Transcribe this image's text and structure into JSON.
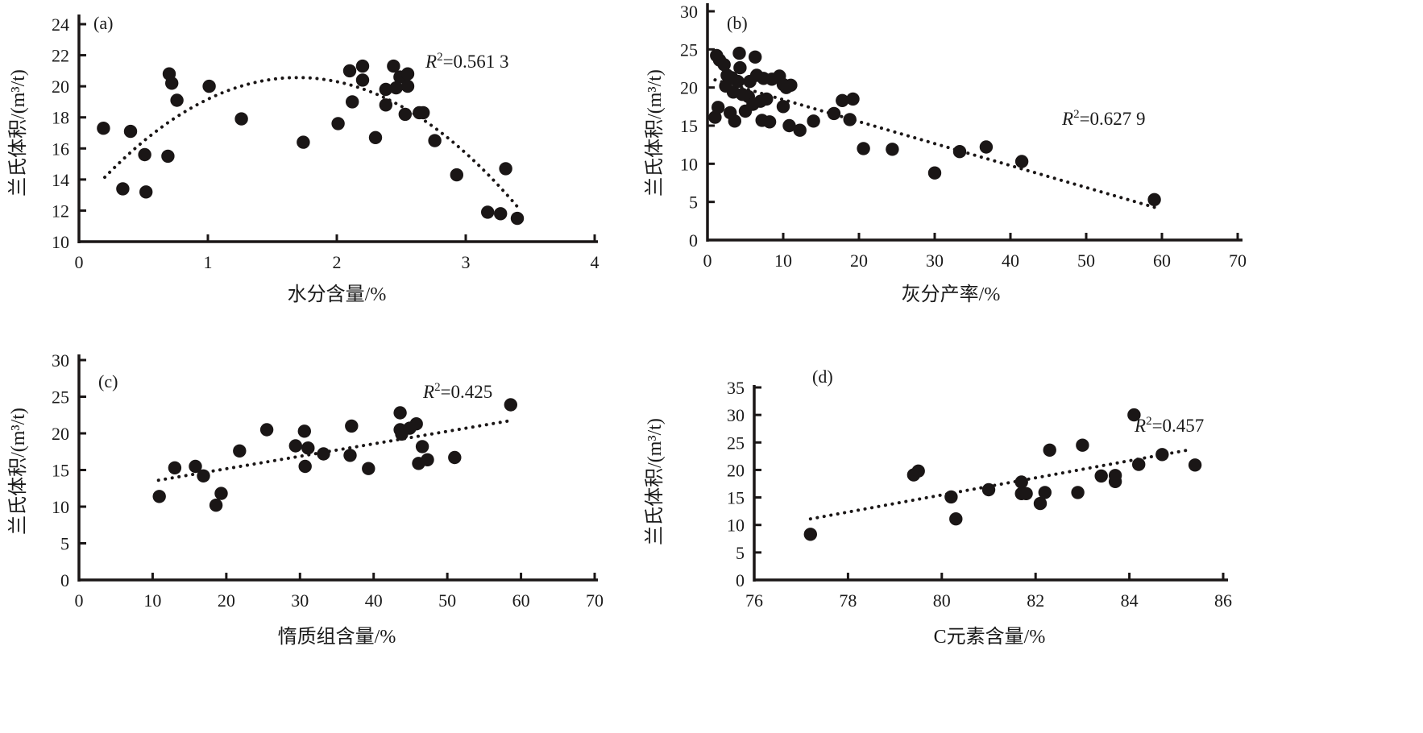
{
  "chart_data": [
    {
      "id": "a",
      "type": "scatter",
      "panel_label": "(a)",
      "title": "",
      "xlabel": "水分含量/%",
      "ylabel": "兰氏体积/(m³/t)",
      "xlim": [
        0,
        4
      ],
      "ylim": [
        10,
        24
      ],
      "xticks": [
        0,
        1,
        2,
        3,
        4
      ],
      "yticks": [
        10,
        12,
        14,
        16,
        18,
        20,
        22,
        24
      ],
      "grid": false,
      "trendline": {
        "type": "polynomial",
        "order": 2,
        "style": "dotted",
        "x_range": [
          0.2,
          3.4
        ],
        "points": [
          [
            0.2,
            14.2
          ],
          [
            0.5,
            16.4
          ],
          [
            1.0,
            19.2
          ],
          [
            1.65,
            20.5
          ],
          [
            2.0,
            20.2
          ],
          [
            2.5,
            18.8
          ],
          [
            3.0,
            15.9
          ],
          [
            3.4,
            12.1
          ]
        ]
      },
      "r2_label": "R²=0.561 3",
      "r2_prefix": "R",
      "r2_sup": "2",
      "r2_value": "=0.561 3",
      "points": [
        [
          0.19,
          17.3
        ],
        [
          0.34,
          13.4
        ],
        [
          0.4,
          17.1
        ],
        [
          0.51,
          15.6
        ],
        [
          0.52,
          13.2
        ],
        [
          0.69,
          15.5
        ],
        [
          0.7,
          20.8
        ],
        [
          0.72,
          20.2
        ],
        [
          0.76,
          19.1
        ],
        [
          1.01,
          20.0
        ],
        [
          1.26,
          17.9
        ],
        [
          1.74,
          16.4
        ],
        [
          2.01,
          17.6
        ],
        [
          2.1,
          21.0
        ],
        [
          2.12,
          19.0
        ],
        [
          2.2,
          20.4
        ],
        [
          2.2,
          21.3
        ],
        [
          2.3,
          16.7
        ],
        [
          2.38,
          18.8
        ],
        [
          2.38,
          19.8
        ],
        [
          2.44,
          21.3
        ],
        [
          2.46,
          19.9
        ],
        [
          2.49,
          20.6
        ],
        [
          2.53,
          18.2
        ],
        [
          2.55,
          20.8
        ],
        [
          2.55,
          20.0
        ],
        [
          2.64,
          18.3
        ],
        [
          2.67,
          18.3
        ],
        [
          2.76,
          16.5
        ],
        [
          2.93,
          14.3
        ],
        [
          3.17,
          11.9
        ],
        [
          3.27,
          11.8
        ],
        [
          3.31,
          14.7
        ],
        [
          3.4,
          11.5
        ]
      ]
    },
    {
      "id": "b",
      "type": "scatter",
      "panel_label": "(b)",
      "title": "",
      "xlabel": "灰分产率/%",
      "ylabel": "兰氏体积/(m³/t)",
      "xlim": [
        0,
        70
      ],
      "ylim": [
        0,
        30
      ],
      "xticks": [
        0,
        10,
        20,
        30,
        40,
        50,
        60,
        70
      ],
      "yticks": [
        0,
        5,
        10,
        15,
        20,
        25,
        30
      ],
      "grid": false,
      "trendline": {
        "type": "linear",
        "style": "dotted",
        "x_range": [
          1.0,
          59.0
        ],
        "points": [
          [
            1.0,
            21.0
          ],
          [
            59.0,
            4.3
          ]
        ]
      },
      "r2_label": "R²=0.627 9",
      "r2_prefix": "R",
      "r2_sup": "2",
      "r2_value": "=0.627 9",
      "points": [
        [
          1.0,
          16.1
        ],
        [
          1.2,
          24.2
        ],
        [
          1.4,
          17.4
        ],
        [
          1.6,
          23.6
        ],
        [
          2.2,
          23.0
        ],
        [
          2.4,
          20.2
        ],
        [
          2.6,
          21.6
        ],
        [
          3.0,
          16.7
        ],
        [
          3.2,
          21.3
        ],
        [
          3.4,
          19.4
        ],
        [
          3.6,
          15.6
        ],
        [
          4.0,
          20.8
        ],
        [
          4.2,
          24.5
        ],
        [
          4.3,
          22.6
        ],
        [
          4.6,
          19.1
        ],
        [
          5.0,
          16.9
        ],
        [
          5.4,
          18.8
        ],
        [
          5.6,
          20.8
        ],
        [
          6.0,
          17.8
        ],
        [
          6.3,
          24.0
        ],
        [
          6.5,
          21.6
        ],
        [
          7.0,
          18.2
        ],
        [
          7.2,
          15.7
        ],
        [
          7.4,
          21.2
        ],
        [
          7.8,
          18.5
        ],
        [
          8.2,
          15.5
        ],
        [
          8.5,
          21.1
        ],
        [
          9.5,
          21.5
        ],
        [
          10.0,
          20.4
        ],
        [
          10.0,
          17.5
        ],
        [
          10.4,
          20.0
        ],
        [
          10.8,
          15.0
        ],
        [
          11.0,
          20.3
        ],
        [
          12.2,
          14.4
        ],
        [
          14.0,
          15.6
        ],
        [
          16.7,
          16.6
        ],
        [
          17.8,
          18.3
        ],
        [
          18.8,
          15.8
        ],
        [
          19.2,
          18.5
        ],
        [
          20.6,
          12.0
        ],
        [
          24.4,
          11.9
        ],
        [
          30.0,
          8.8
        ],
        [
          33.3,
          11.6
        ],
        [
          36.8,
          12.2
        ],
        [
          41.5,
          10.3
        ],
        [
          59.0,
          5.3
        ]
      ]
    },
    {
      "id": "c",
      "type": "scatter",
      "panel_label": "(c)",
      "title": "",
      "xlabel": "惰质组含量/%",
      "ylabel": "兰氏体积/(m³/t)",
      "xlim": [
        0,
        70
      ],
      "ylim": [
        0,
        30
      ],
      "xticks": [
        0,
        10,
        20,
        30,
        40,
        50,
        60,
        70
      ],
      "yticks": [
        0,
        5,
        10,
        15,
        20,
        25,
        30
      ],
      "grid": false,
      "trendline": {
        "type": "linear",
        "style": "dotted",
        "x_range": [
          10.8,
          58.4
        ],
        "points": [
          [
            10.8,
            13.6
          ],
          [
            58.4,
            21.7
          ]
        ]
      },
      "r2_label": "R²=0.425",
      "r2_prefix": "R",
      "r2_sup": "2",
      "r2_value": "=0.425",
      "points": [
        [
          10.9,
          11.4
        ],
        [
          13.0,
          15.3
        ],
        [
          15.8,
          15.5
        ],
        [
          16.9,
          14.2
        ],
        [
          18.6,
          10.2
        ],
        [
          19.3,
          11.8
        ],
        [
          21.8,
          17.6
        ],
        [
          25.5,
          20.5
        ],
        [
          29.4,
          18.3
        ],
        [
          30.6,
          20.3
        ],
        [
          30.7,
          15.5
        ],
        [
          31.1,
          18.0
        ],
        [
          33.2,
          17.2
        ],
        [
          37.0,
          21.0
        ],
        [
          36.8,
          17.0
        ],
        [
          39.3,
          15.2
        ],
        [
          43.6,
          22.8
        ],
        [
          43.6,
          20.5
        ],
        [
          43.8,
          19.9
        ],
        [
          44.9,
          20.7
        ],
        [
          45.8,
          21.3
        ],
        [
          46.1,
          15.9
        ],
        [
          46.6,
          18.2
        ],
        [
          47.3,
          16.4
        ],
        [
          51.0,
          16.7
        ],
        [
          58.6,
          23.9
        ]
      ]
    },
    {
      "id": "d",
      "type": "scatter",
      "panel_label": "(d)",
      "title": "",
      "xlabel": "C元素含量/%",
      "ylabel": "兰氏体积/(m³/t)",
      "xlim": [
        76,
        86
      ],
      "ylim": [
        0,
        35
      ],
      "xticks": [
        76,
        78,
        80,
        82,
        84,
        86
      ],
      "yticks": [
        0,
        5,
        10,
        15,
        20,
        25,
        30,
        35
      ],
      "grid": false,
      "trendline": {
        "type": "linear",
        "style": "dotted",
        "x_range": [
          77.2,
          85.3
        ],
        "points": [
          [
            77.2,
            11.1
          ],
          [
            85.3,
            23.7
          ]
        ]
      },
      "r2_label": "R²=0.457",
      "r2_prefix": "R",
      "r2_sup": "2",
      "r2_value": "=0.457",
      "points": [
        [
          77.2,
          8.3
        ],
        [
          79.4,
          19.1
        ],
        [
          79.5,
          19.8
        ],
        [
          80.2,
          15.1
        ],
        [
          80.3,
          11.1
        ],
        [
          81.0,
          16.4
        ],
        [
          81.7,
          17.8
        ],
        [
          81.7,
          15.7
        ],
        [
          81.8,
          15.7
        ],
        [
          82.1,
          13.9
        ],
        [
          82.2,
          15.9
        ],
        [
          82.3,
          23.6
        ],
        [
          82.9,
          15.9
        ],
        [
          83.0,
          24.5
        ],
        [
          83.4,
          18.9
        ],
        [
          83.7,
          17.9
        ],
        [
          83.7,
          19.0
        ],
        [
          84.1,
          30.0
        ],
        [
          84.2,
          21.0
        ],
        [
          84.7,
          22.8
        ],
        [
          85.4,
          20.9
        ]
      ]
    }
  ]
}
